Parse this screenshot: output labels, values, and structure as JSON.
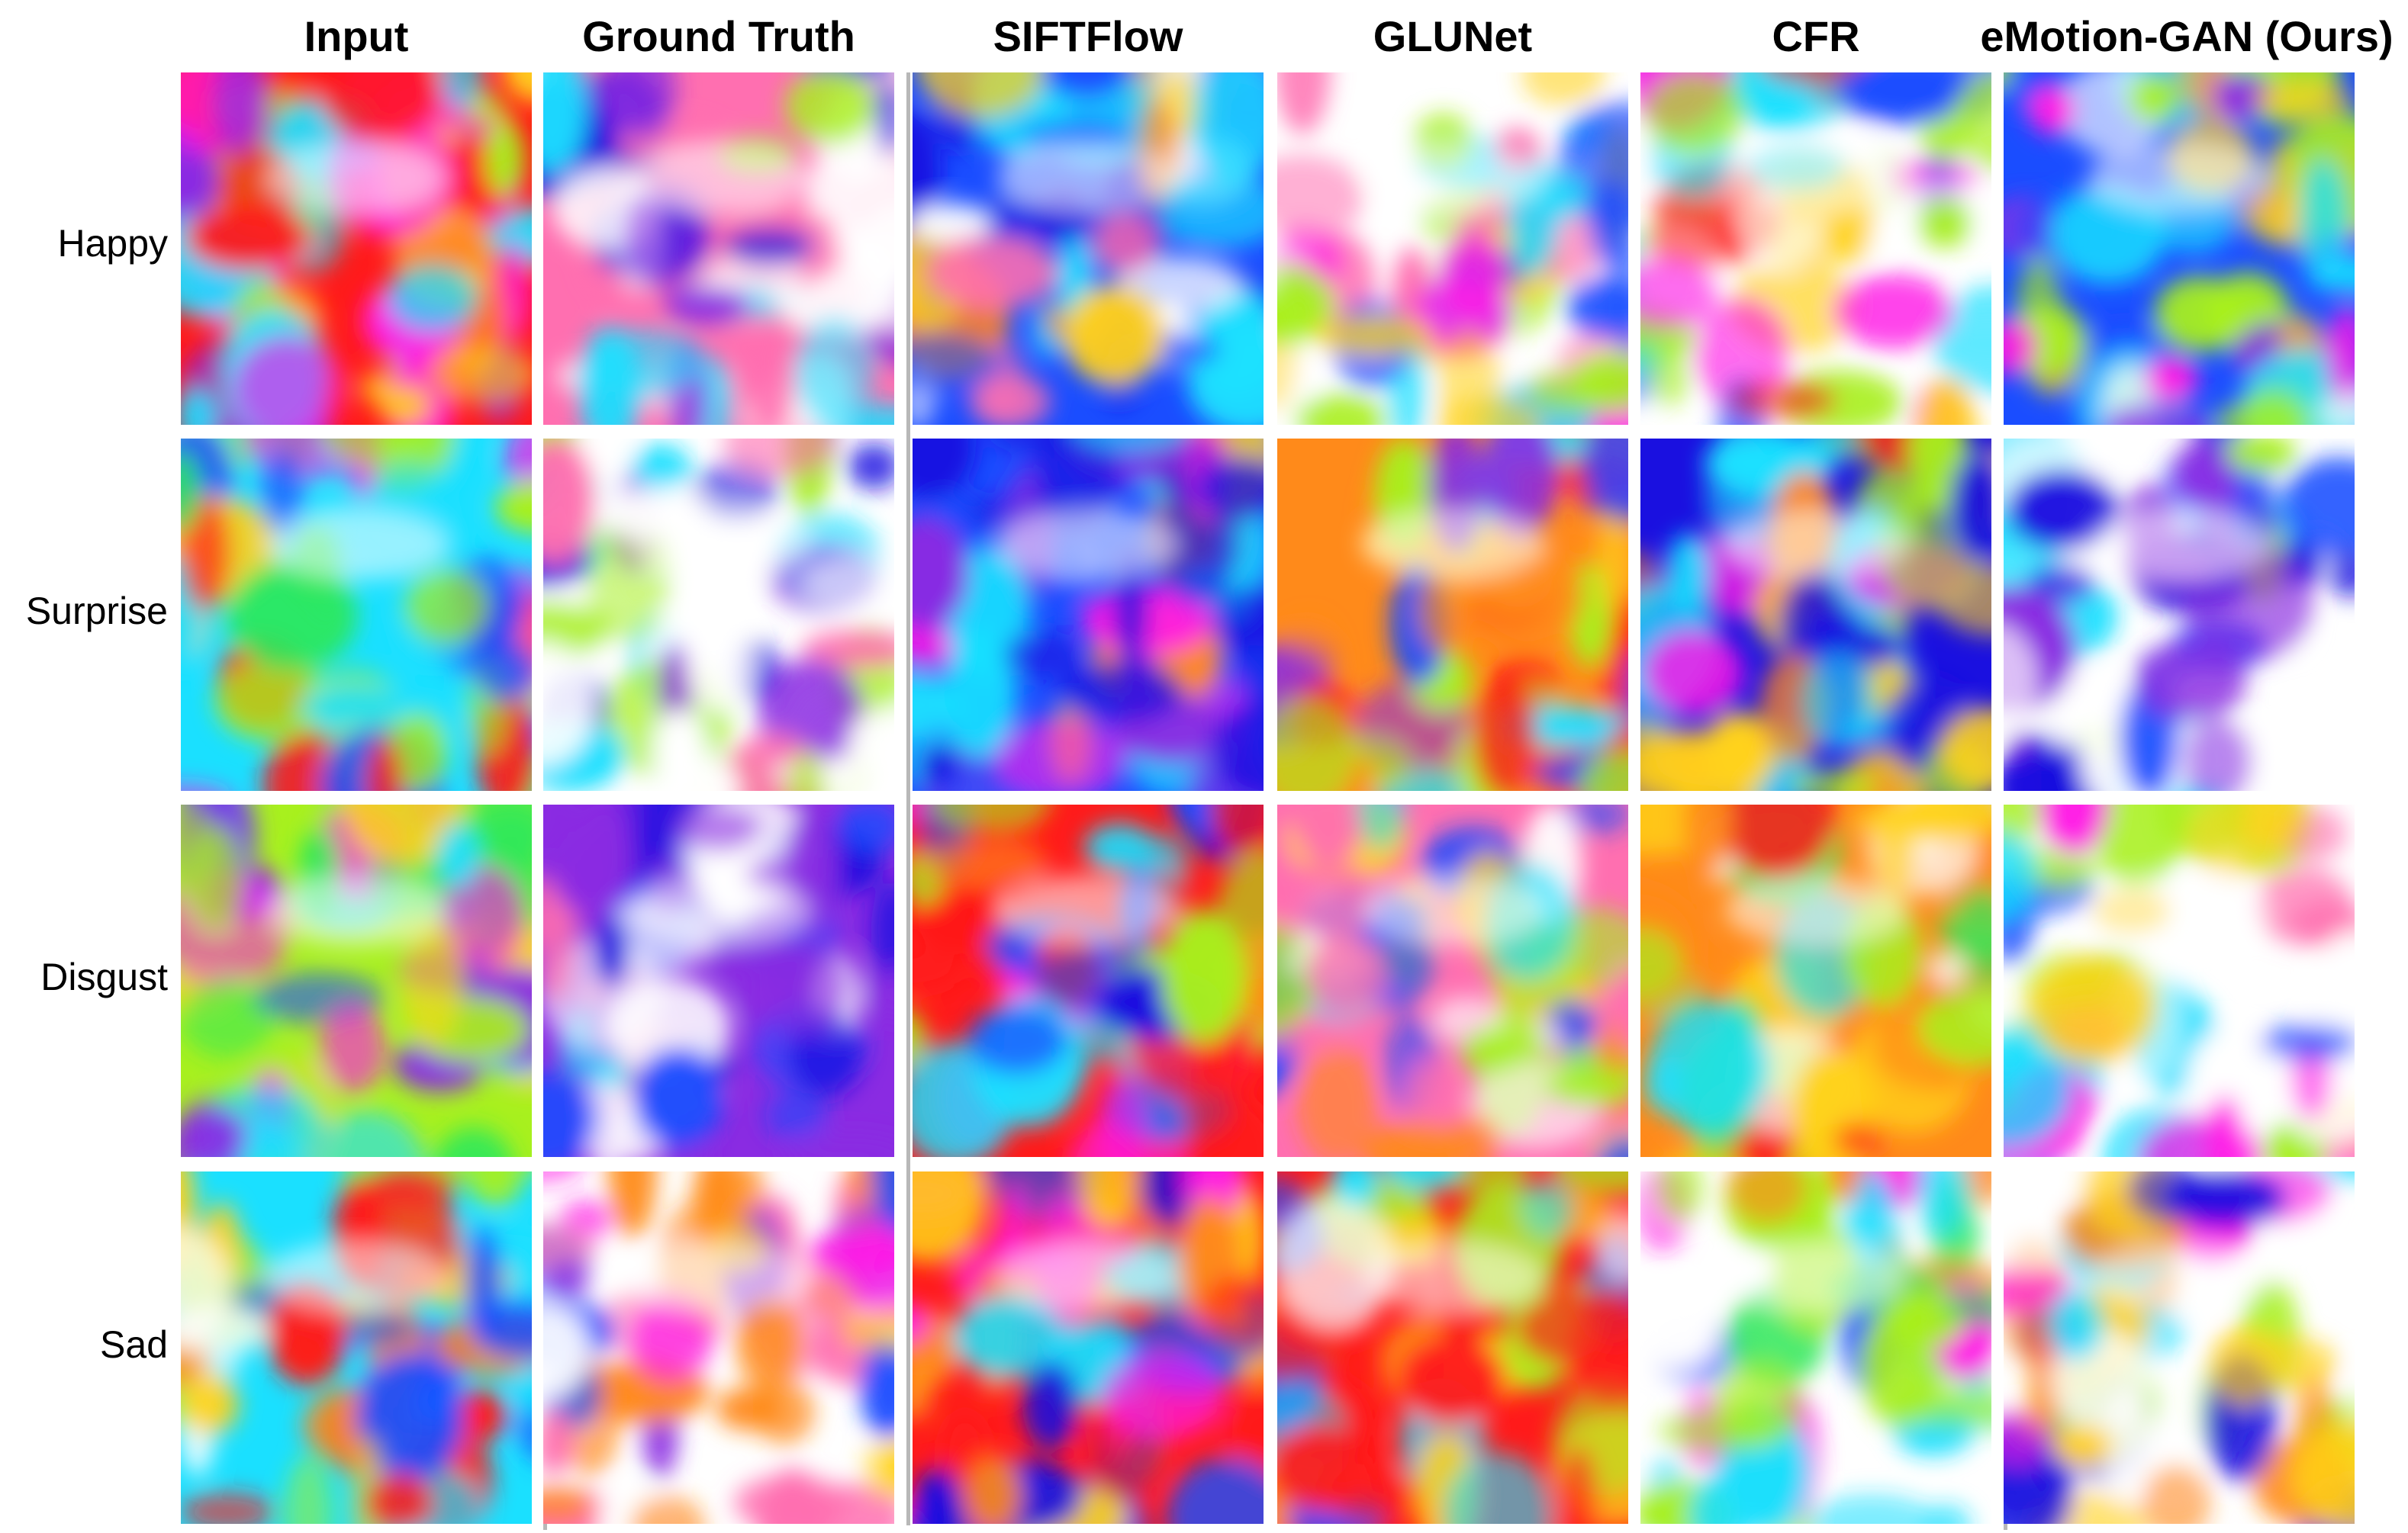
{
  "columns": [
    "Input",
    "Ground Truth",
    "SIFTFlow",
    "GLUNet",
    "CFR",
    "eMotion-GAN (Ours)"
  ],
  "rows": [
    "Happy",
    "Surprise",
    "Disgust",
    "Sad"
  ],
  "palette": {
    "red": "#ff1a1a",
    "orange": "#ff8a1a",
    "yellow": "#ffd21a",
    "lime": "#a8f01e",
    "green": "#2ee85a",
    "cyan": "#1ae0ff",
    "blue": "#1a4dff",
    "navy": "#1a10e0",
    "violet": "#8a2be2",
    "magenta": "#ff1ae6",
    "pink": "#ff6fb0",
    "white": "#ffffff"
  }
}
